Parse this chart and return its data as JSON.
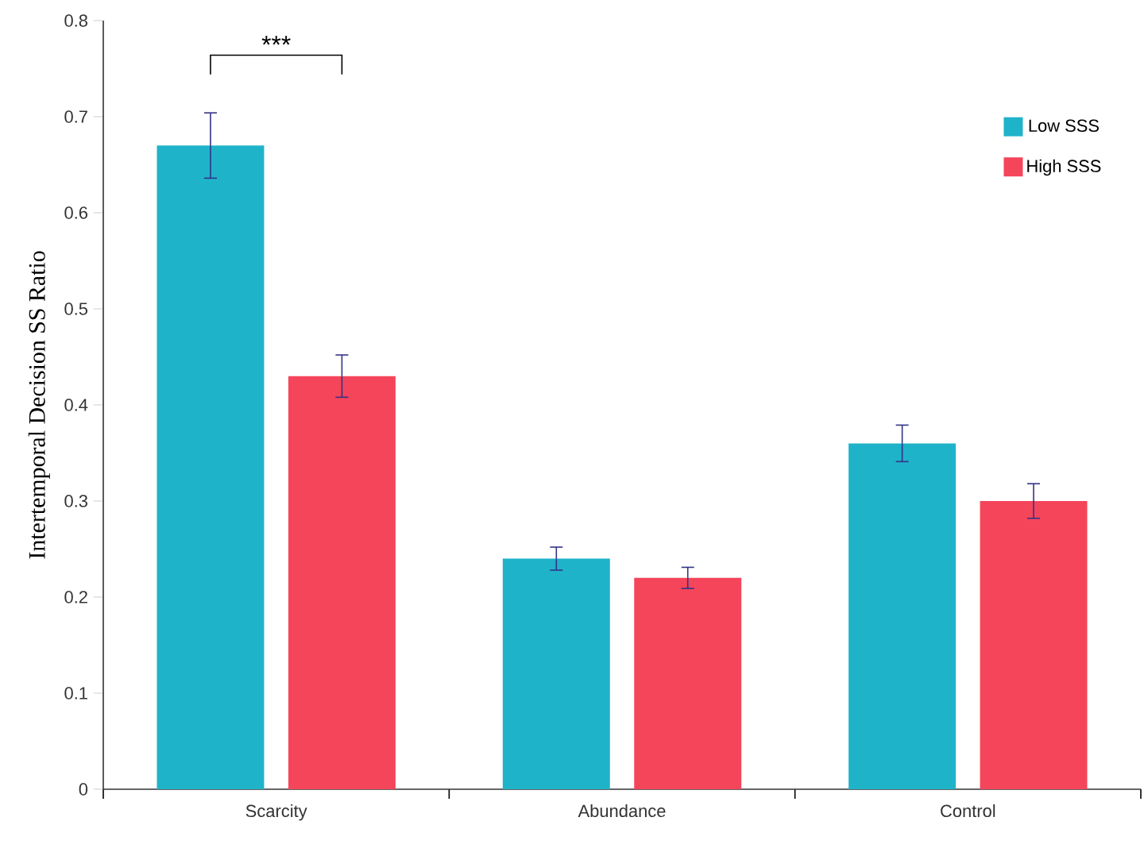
{
  "chart_data": {
    "type": "bar",
    "ylabel": "Intertemporal Decision SS Ratio",
    "categories": [
      "Scarcity",
      "Abundance",
      "Control"
    ],
    "series": [
      {
        "name": "Low SSS",
        "color": "#1fb3c9",
        "values": [
          0.67,
          0.24,
          0.36
        ],
        "errors": [
          0.034,
          0.012,
          0.019
        ]
      },
      {
        "name": "High SSS",
        "color": "#f5455a",
        "values": [
          0.43,
          0.22,
          0.3
        ],
        "errors": [
          0.022,
          0.011,
          0.018
        ]
      }
    ],
    "ylim": [
      0,
      0.8
    ],
    "yticks": [
      0,
      0.1,
      0.2,
      0.3,
      0.4,
      0.5,
      0.6,
      0.7,
      0.8
    ],
    "grid": false,
    "legend": "top right",
    "annotations": [
      "***"
    ]
  }
}
